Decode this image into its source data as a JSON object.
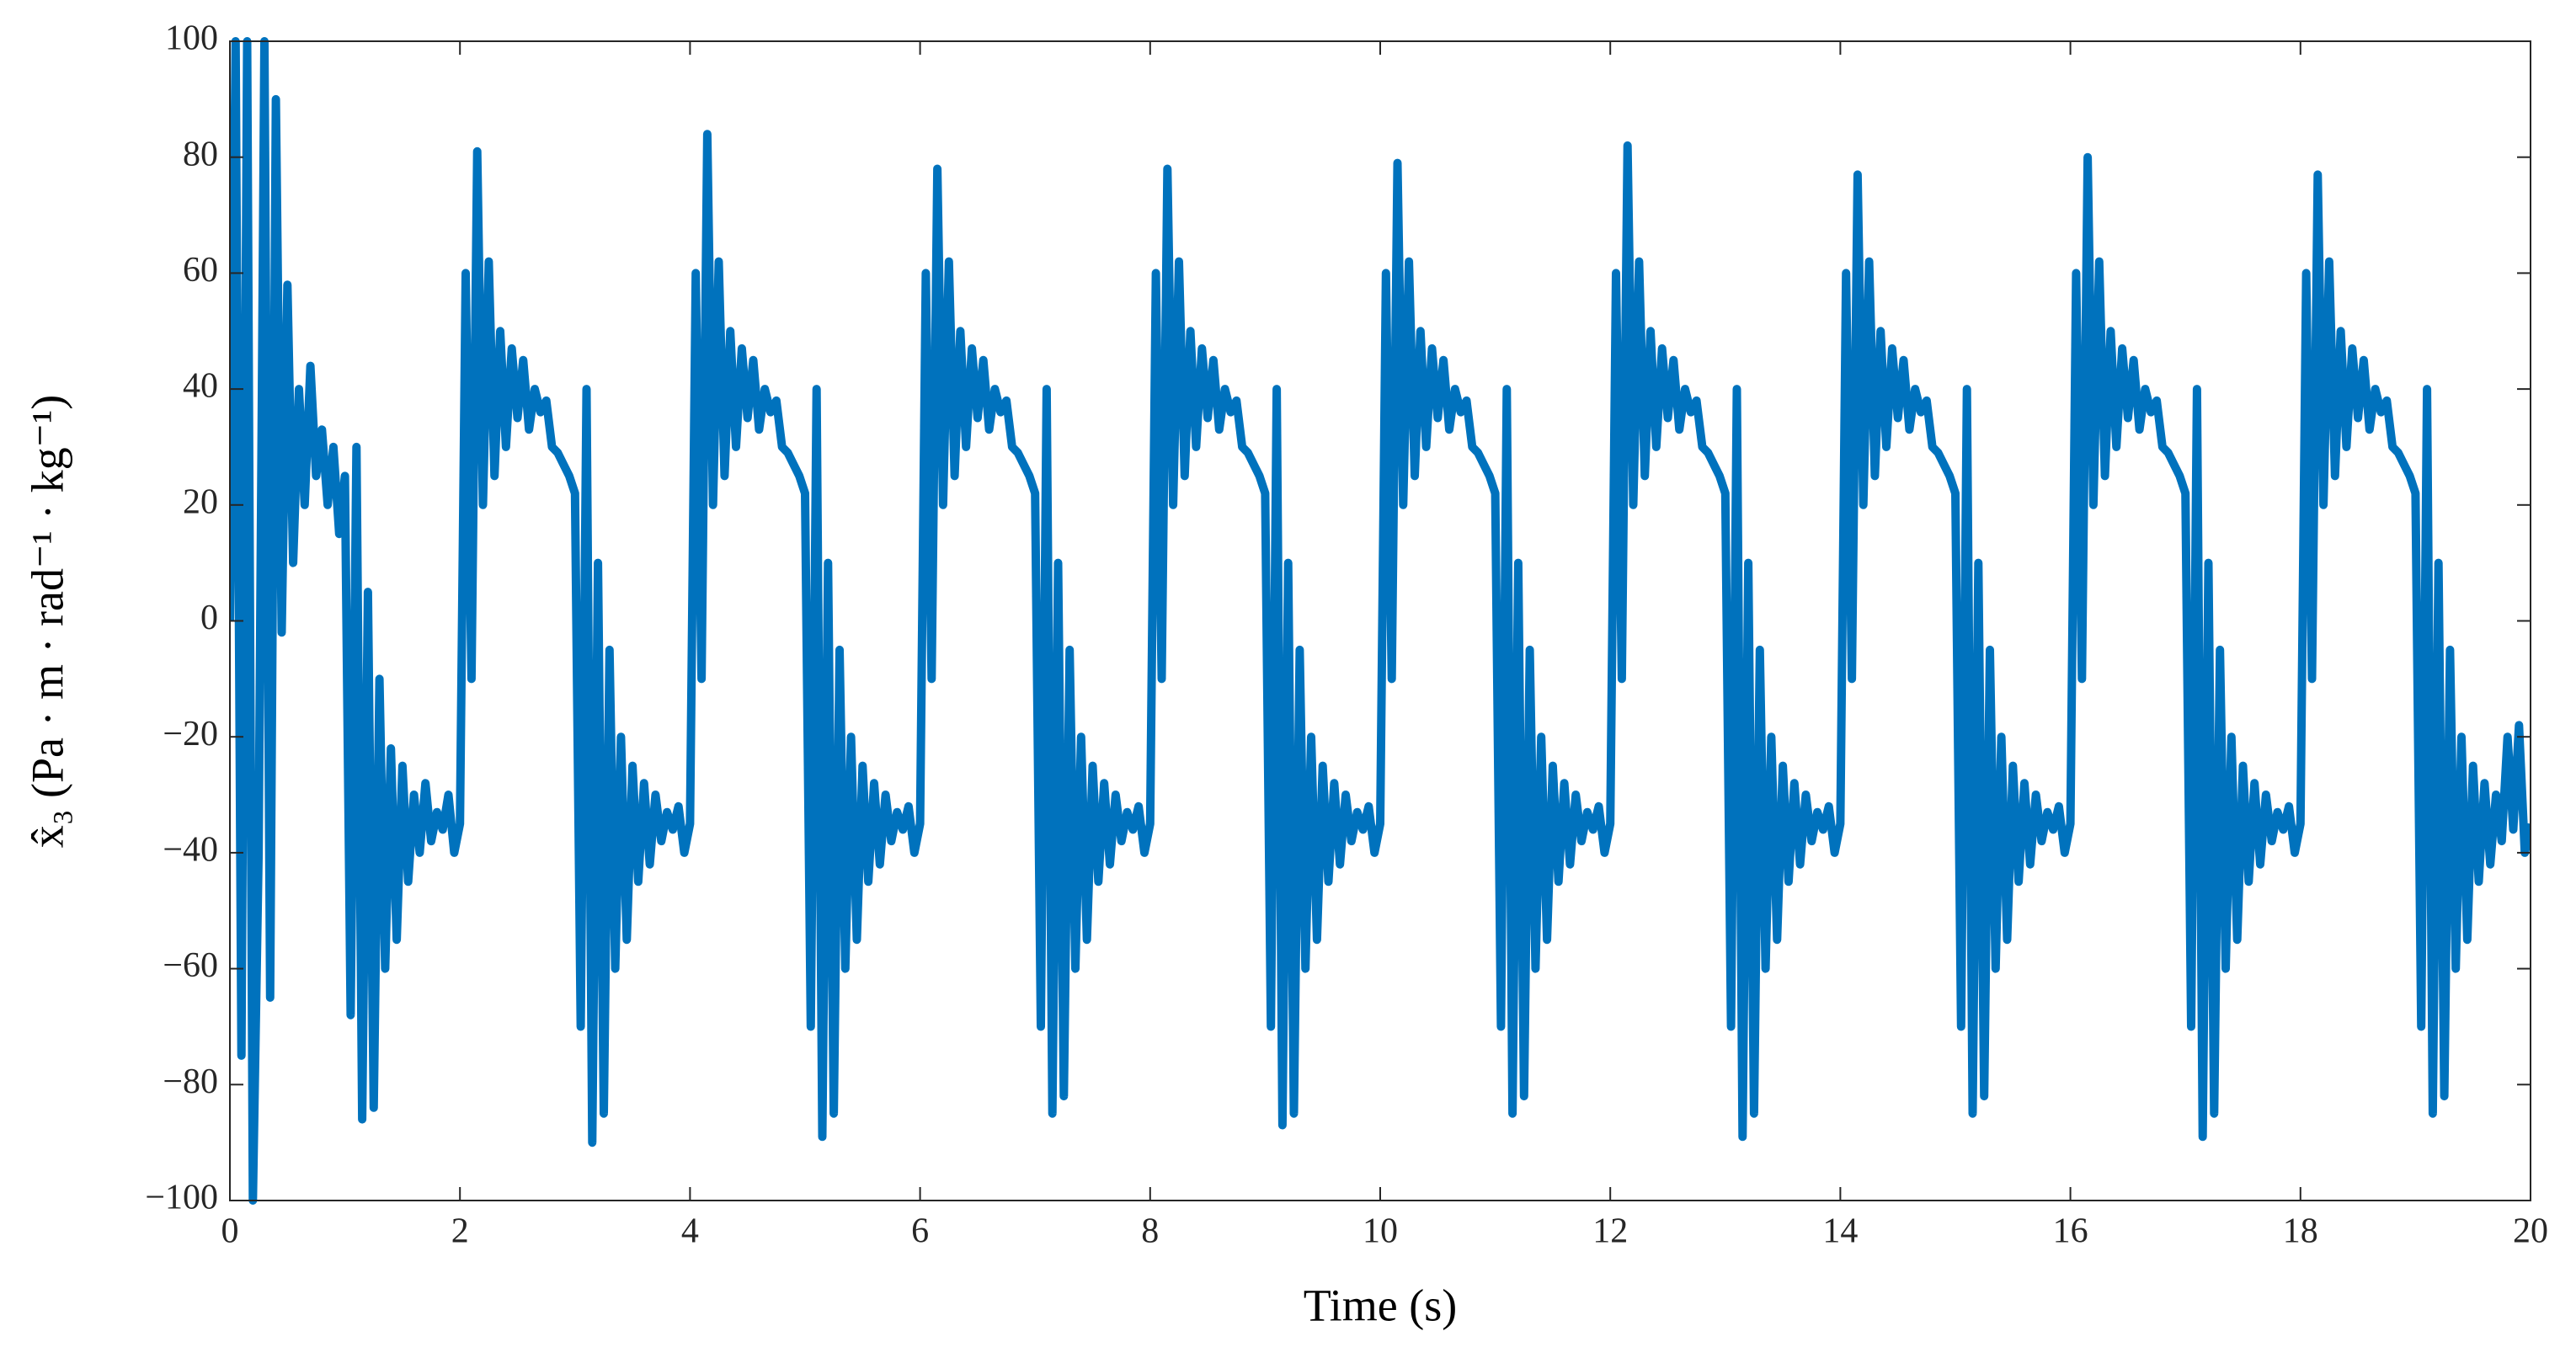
{
  "chart_data": {
    "type": "line",
    "xlabel": "Time (s)",
    "ylabel": "x̂₃ (Pa · m · rad⁻¹ · kg⁻¹)",
    "x": [
      0,
      0.05,
      0.1,
      0.15,
      0.2,
      0.25,
      0.3,
      0.35,
      0.4,
      0.45,
      0.5,
      0.55,
      0.6,
      0.65,
      0.7,
      0.75,
      0.8,
      0.85,
      0.9,
      0.95,
      1,
      1.05,
      1.1,
      1.15,
      1.2,
      1.25,
      1.3,
      1.35,
      1.4,
      1.45,
      1.5,
      1.55,
      1.6,
      1.65,
      1.7,
      1.75,
      1.8,
      1.85,
      1.9,
      1.95,
      2,
      2.05,
      2.1,
      2.15,
      2.2,
      2.25,
      2.3,
      2.35,
      2.4,
      2.45,
      2.5,
      2.55,
      2.6,
      2.65,
      2.7,
      2.75,
      2.8,
      2.85,
      2.9,
      2.95,
      3,
      3.05,
      3.1,
      3.15,
      3.2,
      3.25,
      3.3,
      3.35,
      3.4,
      3.45,
      3.5,
      3.55,
      3.6,
      3.65,
      3.7,
      3.75,
      3.8,
      3.85,
      3.9,
      3.95,
      4,
      4.05,
      4.1,
      4.15,
      4.2,
      4.25,
      4.3,
      4.35,
      4.4,
      4.45,
      4.5,
      4.55,
      4.6,
      4.65,
      4.7,
      4.75,
      4.8,
      4.85,
      4.9,
      4.95,
      5,
      5.05,
      5.1,
      5.15,
      5.2,
      5.25,
      5.3,
      5.35,
      5.4,
      5.45,
      5.5,
      5.55,
      5.6,
      5.65,
      5.7,
      5.75,
      5.8,
      5.85,
      5.9,
      5.95,
      6,
      6.05,
      6.1,
      6.15,
      6.2,
      6.25,
      6.3,
      6.35,
      6.4,
      6.45,
      6.5,
      6.55,
      6.6,
      6.65,
      6.7,
      6.75,
      6.8,
      6.85,
      6.9,
      6.95,
      7,
      7.05,
      7.1,
      7.15,
      7.2,
      7.25,
      7.3,
      7.35,
      7.4,
      7.45,
      7.5,
      7.55,
      7.6,
      7.65,
      7.7,
      7.75,
      7.8,
      7.85,
      7.9,
      7.95,
      8,
      8.05,
      8.1,
      8.15,
      8.2,
      8.25,
      8.3,
      8.35,
      8.4,
      8.45,
      8.5,
      8.55,
      8.6,
      8.65,
      8.7,
      8.75,
      8.8,
      8.85,
      8.9,
      8.95,
      9,
      9.05,
      9.1,
      9.15,
      9.2,
      9.25,
      9.3,
      9.35,
      9.4,
      9.45,
      9.5,
      9.55,
      9.6,
      9.65,
      9.7,
      9.75,
      9.8,
      9.85,
      9.9,
      9.95,
      10,
      10.05,
      10.1,
      10.15,
      10.2,
      10.25,
      10.3,
      10.35,
      10.4,
      10.45,
      10.5,
      10.55,
      10.6,
      10.65,
      10.7,
      10.75,
      10.8,
      10.85,
      10.9,
      10.95,
      11,
      11.05,
      11.1,
      11.15,
      11.2,
      11.25,
      11.3,
      11.35,
      11.4,
      11.45,
      11.5,
      11.55,
      11.6,
      11.65,
      11.7,
      11.75,
      11.8,
      11.85,
      11.9,
      11.95,
      12,
      12.05,
      12.1,
      12.15,
      12.2,
      12.25,
      12.3,
      12.35,
      12.4,
      12.45,
      12.5,
      12.55,
      12.6,
      12.65,
      12.7,
      12.75,
      12.8,
      12.85,
      12.9,
      12.95,
      13,
      13.05,
      13.1,
      13.15,
      13.2,
      13.25,
      13.3,
      13.35,
      13.4,
      13.45,
      13.5,
      13.55,
      13.6,
      13.65,
      13.7,
      13.75,
      13.8,
      13.85,
      13.9,
      13.95,
      14,
      14.05,
      14.1,
      14.15,
      14.2,
      14.25,
      14.3,
      14.35,
      14.4,
      14.45,
      14.5,
      14.55,
      14.6,
      14.65,
      14.7,
      14.75,
      14.8,
      14.85,
      14.9,
      14.95,
      15,
      15.05,
      15.1,
      15.15,
      15.2,
      15.25,
      15.3,
      15.35,
      15.4,
      15.45,
      15.5,
      15.55,
      15.6,
      15.65,
      15.7,
      15.75,
      15.8,
      15.85,
      15.9,
      15.95,
      16,
      16.05,
      16.1,
      16.15,
      16.2,
      16.25,
      16.3,
      16.35,
      16.4,
      16.45,
      16.5,
      16.55,
      16.6,
      16.65,
      16.7,
      16.75,
      16.8,
      16.85,
      16.9,
      16.95,
      17,
      17.05,
      17.1,
      17.15,
      17.2,
      17.25,
      17.3,
      17.35,
      17.4,
      17.45,
      17.5,
      17.55,
      17.6,
      17.65,
      17.7,
      17.75,
      17.8,
      17.85,
      17.9,
      17.95,
      18,
      18.05,
      18.1,
      18.15,
      18.2,
      18.25,
      18.3,
      18.35,
      18.4,
      18.45,
      18.5,
      18.55,
      18.6,
      18.65,
      18.7,
      18.75,
      18.8,
      18.85,
      18.9,
      18.95,
      19,
      19.05,
      19.1,
      19.15,
      19.2,
      19.25,
      19.3,
      19.35,
      19.4,
      19.45,
      19.5,
      19.55,
      19.6,
      19.65,
      19.7,
      19.75,
      19.8,
      19.85,
      19.9,
      19.95,
      20
    ],
    "series": [
      {
        "color": "#0072bd",
        "values": [
          0,
          100,
          -75,
          100,
          -100,
          -40,
          100,
          -65,
          90,
          -2,
          58,
          10,
          40,
          20,
          44,
          25,
          33,
          20,
          30,
          15,
          25,
          -68,
          30,
          -86,
          5,
          -84,
          -10,
          -60,
          -22,
          -55,
          -25,
          -45,
          -30,
          -40,
          -28,
          -38,
          -33,
          -36,
          -30,
          -40,
          -35,
          60,
          -10,
          81,
          20,
          62,
          25,
          50,
          30,
          47,
          35,
          45,
          33,
          40,
          36,
          38,
          30,
          29,
          27,
          25,
          22,
          -70,
          40,
          -90,
          10,
          -85,
          -5,
          -60,
          -20,
          -55,
          -25,
          -45,
          -28,
          -42,
          -30,
          -38,
          -33,
          -36,
          -32,
          -40,
          -35,
          60,
          -10,
          84,
          20,
          62,
          25,
          50,
          30,
          47,
          35,
          45,
          33,
          40,
          36,
          38,
          30,
          29,
          27,
          25,
          22,
          -70,
          40,
          -89,
          10,
          -85,
          -5,
          -60,
          -20,
          -55,
          -25,
          -45,
          -28,
          -42,
          -30,
          -38,
          -33,
          -36,
          -32,
          -40,
          -35,
          60,
          -10,
          78,
          20,
          62,
          25,
          50,
          30,
          47,
          35,
          45,
          33,
          40,
          36,
          38,
          30,
          29,
          27,
          25,
          22,
          -70,
          40,
          -85,
          10,
          -82,
          -5,
          -60,
          -20,
          -55,
          -25,
          -45,
          -28,
          -42,
          -30,
          -38,
          -33,
          -36,
          -32,
          -40,
          -35,
          60,
          -10,
          78,
          20,
          62,
          25,
          50,
          30,
          47,
          35,
          45,
          33,
          40,
          36,
          38,
          30,
          29,
          27,
          25,
          22,
          -70,
          40,
          -87,
          10,
          -85,
          -5,
          -60,
          -20,
          -55,
          -25,
          -45,
          -28,
          -42,
          -30,
          -38,
          -33,
          -36,
          -32,
          -40,
          -35,
          60,
          -10,
          79,
          20,
          62,
          25,
          50,
          30,
          47,
          35,
          45,
          33,
          40,
          36,
          38,
          30,
          29,
          27,
          25,
          22,
          -70,
          40,
          -85,
          10,
          -82,
          -5,
          -60,
          -20,
          -55,
          -25,
          -45,
          -28,
          -42,
          -30,
          -38,
          -33,
          -36,
          -32,
          -40,
          -35,
          60,
          -10,
          82,
          20,
          62,
          25,
          50,
          30,
          47,
          35,
          45,
          33,
          40,
          36,
          38,
          30,
          29,
          27,
          25,
          22,
          -70,
          40,
          -89,
          10,
          -85,
          -5,
          -60,
          -20,
          -55,
          -25,
          -45,
          -28,
          -42,
          -30,
          -38,
          -33,
          -36,
          -32,
          -40,
          -35,
          60,
          -10,
          77,
          20,
          62,
          25,
          50,
          30,
          47,
          35,
          45,
          33,
          40,
          36,
          38,
          30,
          29,
          27,
          25,
          22,
          -70,
          40,
          -85,
          10,
          -82,
          -5,
          -60,
          -20,
          -55,
          -25,
          -45,
          -28,
          -42,
          -30,
          -38,
          -33,
          -36,
          -32,
          -40,
          -35,
          60,
          -10,
          80,
          20,
          62,
          25,
          50,
          30,
          47,
          35,
          45,
          33,
          40,
          36,
          38,
          30,
          29,
          27,
          25,
          22,
          -70,
          40,
          -89,
          10,
          -85,
          -5,
          -60,
          -20,
          -55,
          -25,
          -45,
          -28,
          -42,
          -30,
          -38,
          -33,
          -36,
          -32,
          -40,
          -35,
          60,
          -10,
          77,
          20,
          62,
          25,
          50,
          30,
          47,
          35,
          45,
          33,
          40,
          36,
          38,
          30,
          29,
          27,
          25,
          22,
          -70,
          40,
          -85,
          10,
          -82,
          -5,
          -60,
          -20,
          -55,
          -25,
          -45,
          -28,
          -42,
          -30,
          -38,
          -20,
          -36,
          -18,
          -40,
          -35
        ]
      }
    ],
    "xlim": [
      0,
      20
    ],
    "ylim": [
      -100,
      100
    ],
    "xticks": [
      0,
      2,
      4,
      6,
      8,
      10,
      12,
      14,
      16,
      18,
      20
    ],
    "yticks": [
      {
        "value": -100,
        "label": "−100"
      },
      {
        "value": -80,
        "label": "−80"
      },
      {
        "value": -60,
        "label": "−60"
      },
      {
        "value": -40,
        "label": "−40"
      },
      {
        "value": -20,
        "label": "−20"
      },
      0,
      20,
      40,
      60,
      80,
      100
    ],
    "grid": false
  }
}
